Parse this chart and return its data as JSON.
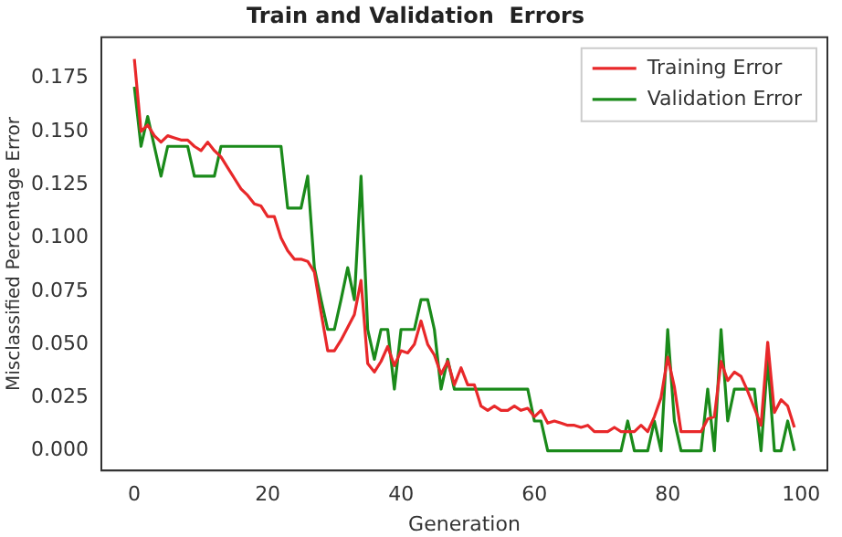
{
  "chart_data": {
    "type": "line",
    "title": "Train and Validation  Errors",
    "xlabel": "Generation",
    "ylabel": "Misclassified Percentage Error",
    "x": [
      0,
      1,
      2,
      3,
      4,
      5,
      6,
      7,
      8,
      9,
      10,
      11,
      12,
      13,
      14,
      15,
      16,
      17,
      18,
      19,
      20,
      21,
      22,
      23,
      24,
      25,
      26,
      27,
      28,
      29,
      30,
      31,
      32,
      33,
      34,
      35,
      36,
      37,
      38,
      39,
      40,
      41,
      42,
      43,
      44,
      45,
      46,
      47,
      48,
      49,
      50,
      51,
      52,
      53,
      54,
      55,
      56,
      57,
      58,
      59,
      60,
      61,
      62,
      63,
      64,
      65,
      66,
      67,
      68,
      69,
      70,
      71,
      72,
      73,
      74,
      75,
      76,
      77,
      78,
      79,
      80,
      81,
      82,
      83,
      84,
      85,
      86,
      87,
      88,
      89,
      90,
      91,
      92,
      93,
      94,
      95,
      96,
      97,
      98,
      99
    ],
    "series": [
      {
        "name": "Training Error",
        "color": "#e8282a",
        "values": [
          0.184,
          0.15,
          0.153,
          0.148,
          0.145,
          0.148,
          0.147,
          0.146,
          0.146,
          0.143,
          0.141,
          0.145,
          0.141,
          0.138,
          0.133,
          0.128,
          0.123,
          0.12,
          0.116,
          0.115,
          0.11,
          0.11,
          0.1,
          0.094,
          0.09,
          0.09,
          0.089,
          0.084,
          0.065,
          0.047,
          0.047,
          0.052,
          0.058,
          0.064,
          0.08,
          0.041,
          0.037,
          0.042,
          0.049,
          0.04,
          0.047,
          0.046,
          0.05,
          0.061,
          0.05,
          0.045,
          0.036,
          0.042,
          0.031,
          0.039,
          0.031,
          0.031,
          0.021,
          0.019,
          0.021,
          0.019,
          0.019,
          0.021,
          0.019,
          0.02,
          0.016,
          0.019,
          0.013,
          0.014,
          0.013,
          0.012,
          0.012,
          0.011,
          0.012,
          0.009,
          0.009,
          0.009,
          0.011,
          0.009,
          0.009,
          0.009,
          0.012,
          0.009,
          0.016,
          0.025,
          0.044,
          0.03,
          0.009,
          0.009,
          0.009,
          0.009,
          0.015,
          0.016,
          0.042,
          0.033,
          0.037,
          0.035,
          0.028,
          0.02,
          0.012,
          0.051,
          0.018,
          0.024,
          0.021,
          0.011
        ]
      },
      {
        "name": "Validation Error",
        "color": "#1a8a1a",
        "values": [
          0.171,
          0.143,
          0.157,
          0.143,
          0.129,
          0.143,
          0.143,
          0.143,
          0.143,
          0.129,
          0.129,
          0.129,
          0.129,
          0.143,
          0.143,
          0.143,
          0.143,
          0.143,
          0.143,
          0.143,
          0.143,
          0.143,
          0.143,
          0.114,
          0.114,
          0.114,
          0.129,
          0.086,
          0.071,
          0.057,
          0.057,
          0.071,
          0.086,
          0.071,
          0.129,
          0.057,
          0.043,
          0.057,
          0.057,
          0.029,
          0.057,
          0.057,
          0.057,
          0.071,
          0.071,
          0.057,
          0.029,
          0.043,
          0.029,
          0.029,
          0.029,
          0.029,
          0.029,
          0.029,
          0.029,
          0.029,
          0.029,
          0.029,
          0.029,
          0.029,
          0.014,
          0.014,
          0,
          0,
          0,
          0,
          0,
          0,
          0,
          0,
          0,
          0,
          0,
          0,
          0.014,
          0,
          0,
          0,
          0.014,
          0,
          0.057,
          0.014,
          0,
          0,
          0,
          0,
          0.029,
          0,
          0.057,
          0.014,
          0.029,
          0.029,
          0.029,
          0.029,
          0,
          0.043,
          0,
          0,
          0.014,
          0
        ]
      }
    ],
    "xlim": [
      -4.95,
      103.95
    ],
    "xticks": [
      0,
      20,
      40,
      60,
      80,
      100
    ],
    "ylim": [
      -0.00925,
      0.19425
    ],
    "yticks": [
      {
        "value": 0,
        "label": "0.000"
      },
      {
        "value": 0.025,
        "label": "0.025"
      },
      {
        "value": 0.05,
        "label": "0.050"
      },
      {
        "value": 0.075,
        "label": "0.075"
      },
      {
        "value": 0.1,
        "label": "0.100"
      },
      {
        "value": 0.125,
        "label": "0.125"
      },
      {
        "value": 0.15,
        "label": "0.150"
      },
      {
        "value": 0.175,
        "label": "0.175"
      }
    ],
    "legend": "top right",
    "grid": false,
    "marker": "none",
    "line_style": "solid"
  }
}
